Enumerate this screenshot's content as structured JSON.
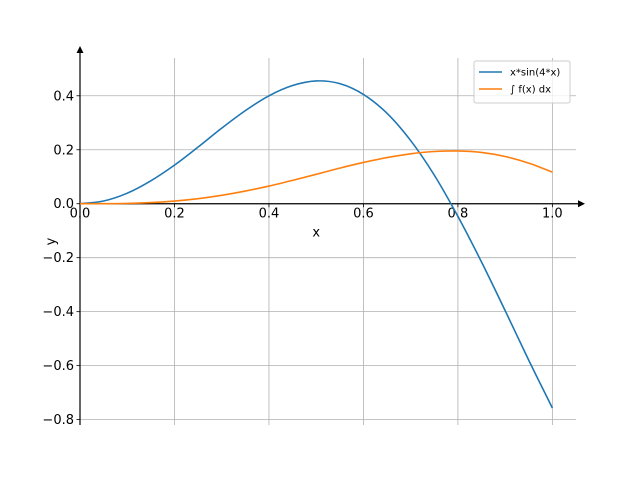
{
  "chart_data": {
    "type": "line",
    "xlabel": "x",
    "ylabel": "y",
    "xlim": [
      0.0,
      1.05
    ],
    "ylim": [
      -0.82,
      0.54
    ],
    "grid": true,
    "legend_position": "top-right",
    "xticks": [
      0.0,
      0.2,
      0.4,
      0.6,
      0.8,
      1.0
    ],
    "xtick_labels": [
      "0.0",
      "0.2",
      "0.4",
      "0.6",
      "0.8",
      "1.0"
    ],
    "yticks": [
      -0.8,
      -0.6,
      -0.4,
      -0.2,
      0.0,
      0.2,
      0.4
    ],
    "ytick_labels": [
      "−0.8",
      "−0.6",
      "−0.4",
      "−0.2",
      "0.0",
      "0.2",
      "0.4"
    ],
    "series": [
      {
        "name": "x*sin(4*x)",
        "color": "#1f77b4",
        "x": [
          0.0,
          0.05,
          0.1,
          0.15,
          0.2,
          0.25,
          0.3,
          0.35,
          0.4,
          0.45,
          0.5,
          0.55,
          0.6,
          0.65,
          0.7,
          0.75,
          0.8,
          0.85,
          0.9,
          0.95,
          1.0
        ],
        "y": [
          0.0,
          0.01,
          0.039,
          0.085,
          0.143,
          0.21,
          0.28,
          0.345,
          0.4,
          0.438,
          0.455,
          0.445,
          0.405,
          0.335,
          0.234,
          0.106,
          -0.047,
          -0.216,
          -0.396,
          -0.58,
          -0.757
        ]
      },
      {
        "name": "∫ f(x) dx",
        "color": "#ff7f0e",
        "x": [
          0.0,
          0.05,
          0.1,
          0.15,
          0.2,
          0.25,
          0.3,
          0.35,
          0.4,
          0.45,
          0.5,
          0.55,
          0.6,
          0.65,
          0.7,
          0.75,
          0.8,
          0.85,
          0.9,
          0.95,
          1.0
        ],
        "y": [
          0.0,
          0.0002,
          0.0013,
          0.0043,
          0.01,
          0.0188,
          0.0311,
          0.0468,
          0.0655,
          0.0866,
          0.109,
          0.132,
          0.153,
          0.171,
          0.185,
          0.1935,
          0.1955,
          0.19,
          0.175,
          0.1505,
          0.117
        ]
      }
    ]
  }
}
